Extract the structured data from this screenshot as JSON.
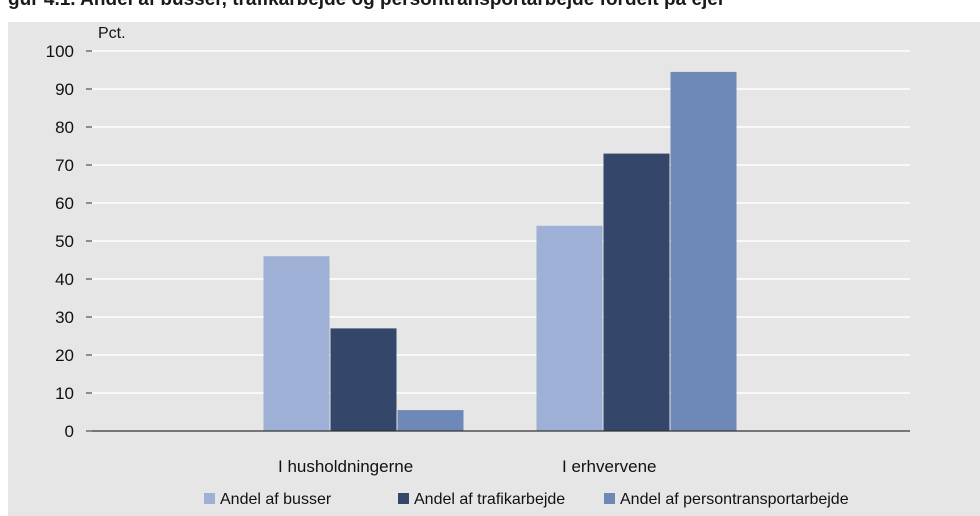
{
  "title_fragment": "gur 4.1. Andel af busser, trafikarbejde og persontransportarbejde fordelt på ejer",
  "chart_data": {
    "type": "bar",
    "unit_label": "Pct.",
    "categories": [
      "I husholdningerne",
      "I erhvervene"
    ],
    "series": [
      {
        "name": "Andel af busser",
        "values": [
          46,
          54
        ],
        "color": "#9fb0d6"
      },
      {
        "name": "Andel af trafikarbejde",
        "values": [
          27,
          73
        ],
        "color": "#34466a"
      },
      {
        "name": "Andel af persontransportarbejde",
        "values": [
          5.5,
          94.5
        ],
        "color": "#6e88b8"
      }
    ],
    "ylim": [
      0,
      100
    ],
    "yticks": [
      0,
      10,
      20,
      30,
      40,
      50,
      60,
      70,
      80,
      90,
      100
    ],
    "grid": true,
    "legend_position": "bottom"
  }
}
